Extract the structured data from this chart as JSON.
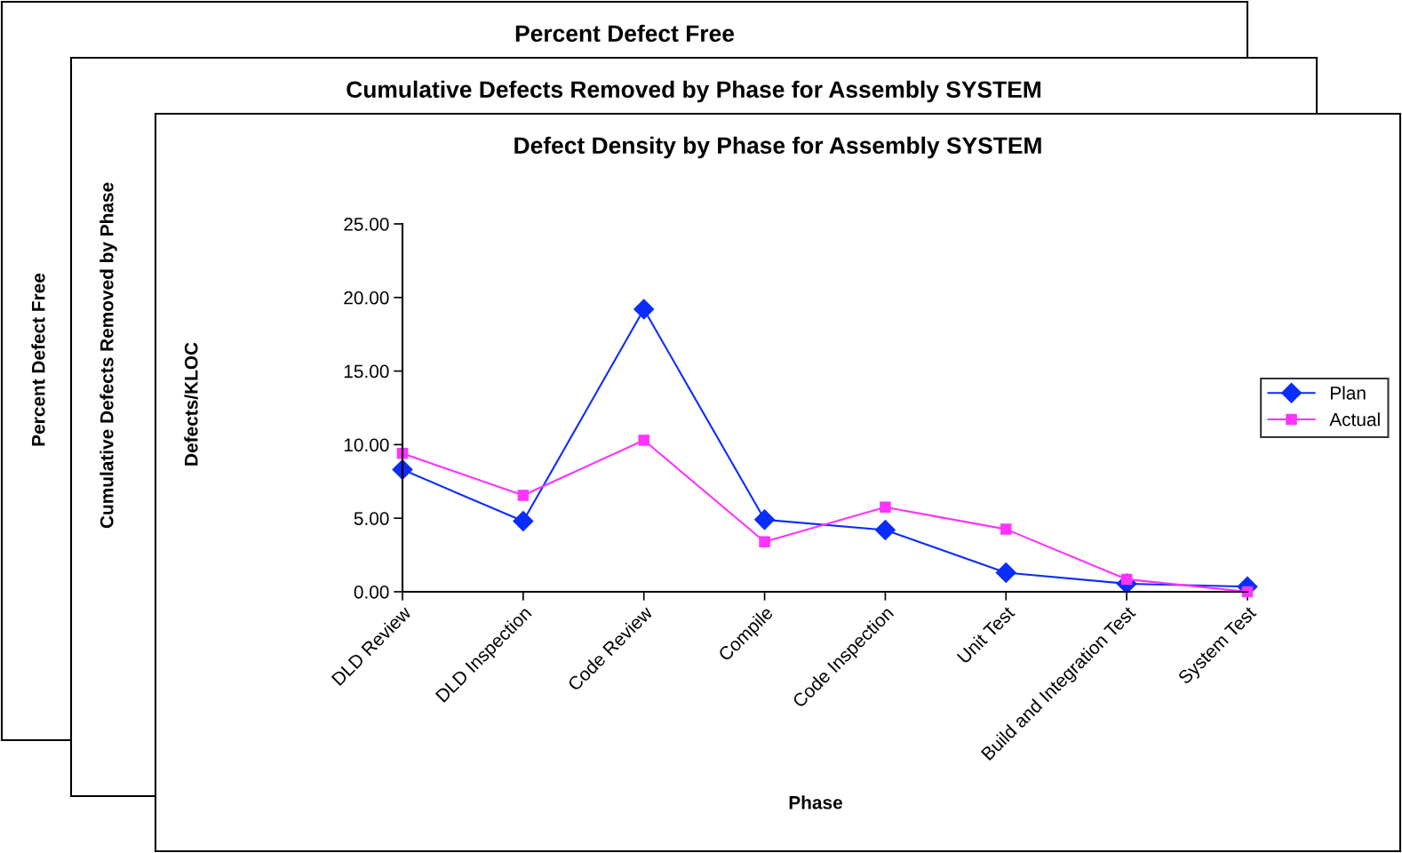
{
  "chart_data": [
    {
      "type": "other",
      "title": "Percent Defect Free",
      "ylabel": "Percent Defect Free"
    },
    {
      "type": "other",
      "title": "Cumulative Defects Removed by Phase for Assembly SYSTEM",
      "ylabel": "Cumulative Defects Removed by Phase"
    },
    {
      "type": "line",
      "title": "Defect Density by Phase for Assembly SYSTEM",
      "xlabel": "Phase",
      "ylabel": "Defects/KLOC",
      "categories": [
        "DLD Review",
        "DLD Inspection",
        "Code Review",
        "Compile",
        "Code Inspection",
        "Unit Test",
        "Build and Integration Test",
        "System Test"
      ],
      "series": [
        {
          "name": "Plan",
          "color": "#0a2cff",
          "marker": "diamond",
          "values": [
            8.3,
            4.8,
            19.2,
            4.9,
            4.2,
            1.3,
            0.55,
            0.35
          ]
        },
        {
          "name": "Actual",
          "color": "#ff33ff",
          "marker": "square",
          "values": [
            9.4,
            6.55,
            10.3,
            3.4,
            5.75,
            4.25,
            0.85,
            0.0
          ]
        }
      ],
      "ylim": [
        0,
        25
      ],
      "yticks": [
        {
          "value": 0,
          "label": "0.00"
        },
        {
          "value": 5,
          "label": "5.00"
        },
        {
          "value": 10,
          "label": "10.00"
        },
        {
          "value": 15,
          "label": "15.00"
        },
        {
          "value": 20,
          "label": "20.00"
        },
        {
          "value": 25,
          "label": "25.00"
        }
      ],
      "grid": false,
      "legend": "right",
      "line_style": "solid"
    }
  ]
}
